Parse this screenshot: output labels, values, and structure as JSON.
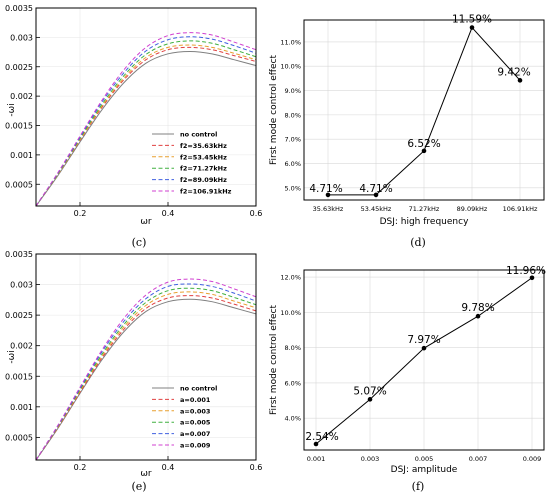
{
  "panel_labels": {
    "c": "(c)",
    "d": "(d)",
    "e": "(e)",
    "f": "(f)"
  },
  "chart_data": [
    {
      "id": "c",
      "type": "line",
      "xlabel": "ωr",
      "ylabel": "-ωi",
      "xlim": [
        0.1,
        0.6
      ],
      "ylim": [
        0.00013,
        0.0035
      ],
      "xticks": [
        "0.2",
        "0.4",
        "0.6"
      ],
      "yticks": [
        "0.0005",
        "0.001",
        "0.0015",
        "0.002",
        "0.0025",
        "0.003",
        "0.0035"
      ],
      "legend_position": "lower-right",
      "x": [
        0.1,
        0.15,
        0.2,
        0.25,
        0.3,
        0.35,
        0.4,
        0.45,
        0.5,
        0.55,
        0.6
      ],
      "series": [
        {
          "name": "no control",
          "color": "#808080",
          "dash": "solid",
          "values": [
            0.00013,
            0.00065,
            0.00122,
            0.00177,
            0.00223,
            0.00256,
            0.00272,
            0.00276,
            0.00272,
            0.00262,
            0.00252
          ]
        },
        {
          "name": "f2=35.63kHz",
          "color": "#e04040",
          "dash": "dashed",
          "values": [
            0.00013,
            0.00067,
            0.00125,
            0.00181,
            0.00228,
            0.00262,
            0.00279,
            0.00283,
            0.00279,
            0.00269,
            0.00259
          ]
        },
        {
          "name": "f2=53.45kHz",
          "color": "#e8a030",
          "dash": "dashed",
          "values": [
            0.00013,
            0.00067,
            0.00126,
            0.00183,
            0.00231,
            0.00266,
            0.00283,
            0.00287,
            0.00283,
            0.00273,
            0.00262
          ]
        },
        {
          "name": "f2=71.27kHz",
          "color": "#40b040",
          "dash": "dashed",
          "values": [
            0.00013,
            0.00068,
            0.00128,
            0.00186,
            0.00235,
            0.00271,
            0.00289,
            0.00294,
            0.0029,
            0.00279,
            0.00267
          ]
        },
        {
          "name": "f2=89.09kHz",
          "color": "#4060e0",
          "dash": "dashed",
          "values": [
            0.00013,
            0.00069,
            0.0013,
            0.0019,
            0.0024,
            0.00277,
            0.00296,
            0.00301,
            0.00297,
            0.00286,
            0.00273
          ]
        },
        {
          "name": "f2=106.91kHz",
          "color": "#d040d0",
          "dash": "dashed",
          "values": [
            0.00013,
            0.0007,
            0.00132,
            0.00193,
            0.00245,
            0.00283,
            0.00303,
            0.00308,
            0.00304,
            0.00292,
            0.00279
          ]
        }
      ]
    },
    {
      "id": "d",
      "type": "line",
      "xlabel": "DSJ: high frequency",
      "ylabel": "First mode control effect",
      "categories": [
        "35.63kHz",
        "53.45kHz",
        "71.27kHz",
        "89.09kHz",
        "106.91kHz"
      ],
      "values": [
        4.71,
        4.71,
        6.52,
        11.59,
        9.42
      ],
      "data_labels": [
        "4.71%",
        "4.71%",
        "6.52%",
        "11.59%",
        "9.42%"
      ],
      "ylim": [
        4.5,
        11.9
      ],
      "yticks": [
        5.0,
        6.0,
        7.0,
        8.0,
        9.0,
        10.0,
        11.0
      ],
      "ytick_labels": [
        "5.0%",
        "6.0%",
        "7.0%",
        "8.0%",
        "9.0%",
        "10.0%",
        "11.0%"
      ]
    },
    {
      "id": "e",
      "type": "line",
      "xlabel": "ωr",
      "ylabel": "-ωi",
      "xlim": [
        0.1,
        0.6
      ],
      "ylim": [
        0.00013,
        0.0035
      ],
      "xticks": [
        "0.2",
        "0.4",
        "0.6"
      ],
      "yticks": [
        "0.0005",
        "0.001",
        "0.0015",
        "0.002",
        "0.0025",
        "0.003",
        "0.0035"
      ],
      "legend_position": "lower-right",
      "x": [
        0.1,
        0.15,
        0.2,
        0.25,
        0.3,
        0.35,
        0.4,
        0.45,
        0.5,
        0.55,
        0.6
      ],
      "series": [
        {
          "name": "no control",
          "color": "#808080",
          "dash": "solid",
          "values": [
            0.00013,
            0.00065,
            0.00122,
            0.00177,
            0.00223,
            0.00256,
            0.00272,
            0.00276,
            0.00272,
            0.00262,
            0.00252
          ]
        },
        {
          "name": "a=0.001",
          "color": "#e04040",
          "dash": "dashed",
          "values": [
            0.00013,
            0.00066,
            0.00124,
            0.0018,
            0.00227,
            0.00261,
            0.00278,
            0.00282,
            0.00278,
            0.00268,
            0.00257
          ]
        },
        {
          "name": "a=0.003",
          "color": "#e8a030",
          "dash": "dashed",
          "values": [
            0.00013,
            0.00067,
            0.00126,
            0.00183,
            0.00231,
            0.00266,
            0.00284,
            0.00288,
            0.00284,
            0.00273,
            0.00262
          ]
        },
        {
          "name": "a=0.005",
          "color": "#40b040",
          "dash": "dashed",
          "values": [
            0.00013,
            0.00068,
            0.00128,
            0.00186,
            0.00235,
            0.00271,
            0.0029,
            0.00294,
            0.0029,
            0.00279,
            0.00267
          ]
        },
        {
          "name": "a=0.007",
          "color": "#4060e0",
          "dash": "dashed",
          "values": [
            0.00013,
            0.00069,
            0.0013,
            0.0019,
            0.0024,
            0.00277,
            0.00297,
            0.00301,
            0.00297,
            0.00286,
            0.00273
          ]
        },
        {
          "name": "a=0.009",
          "color": "#d040d0",
          "dash": "dashed",
          "values": [
            0.00013,
            0.0007,
            0.00132,
            0.00193,
            0.00245,
            0.00283,
            0.00304,
            0.00309,
            0.00305,
            0.00293,
            0.0028
          ]
        }
      ]
    },
    {
      "id": "f",
      "type": "line",
      "xlabel": "DSJ: amplitude",
      "ylabel": "First mode control effect",
      "categories": [
        "0.001",
        "0.003",
        "0.005",
        "0.007",
        "0.009"
      ],
      "values": [
        2.54,
        5.07,
        7.97,
        9.78,
        11.96
      ],
      "data_labels": [
        "2.54%",
        "5.07%",
        "7.97%",
        "9.78%",
        "11.96%"
      ],
      "ylim": [
        2.2,
        12.4
      ],
      "yticks": [
        4.0,
        6.0,
        8.0,
        10.0,
        12.0
      ],
      "ytick_labels": [
        "4.0%",
        "6.0%",
        "8.0%",
        "10.0%",
        "12.0%"
      ]
    }
  ]
}
